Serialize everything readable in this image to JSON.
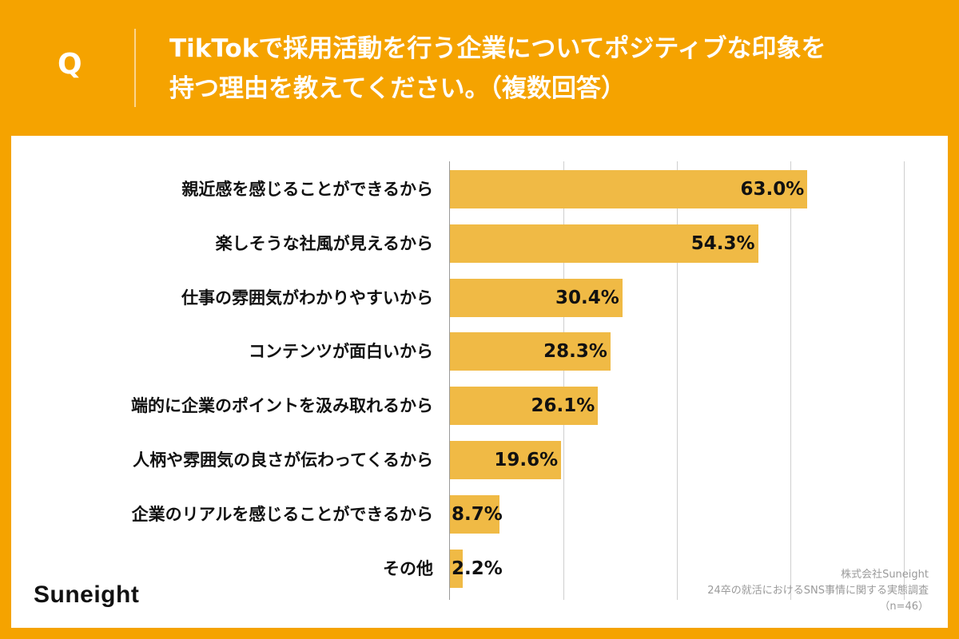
{
  "header": {
    "q_mark": "Q",
    "question_line1": "TikTokで採用活動を行う企業についてポジティブな印象を",
    "question_line2": "持つ理由を教えてください。（複数回答）"
  },
  "chart_data": {
    "type": "bar",
    "orientation": "horizontal",
    "categories": [
      "親近感を感じることができるから",
      "楽しそうな社風が見えるから",
      "仕事の雰囲気がわかりやすいから",
      "コンテンツが面白いから",
      "端的に企業のポイントを汲み取れるから",
      "人柄や雰囲気の良さが伝わってくるから",
      "企業のリアルを感じることができるから",
      "その他"
    ],
    "values": [
      63.0,
      54.3,
      30.4,
      28.3,
      26.1,
      19.6,
      8.7,
      2.2
    ],
    "value_labels": [
      "63.0%",
      "54.3%",
      "30.4%",
      "28.3%",
      "26.1%",
      "19.6%",
      "8.7%",
      "2.2%"
    ],
    "unit": "%",
    "xlim": [
      0,
      80
    ],
    "grid": true,
    "bar_color": "#F0BA45"
  },
  "footer": {
    "logo": "Suneight",
    "source_line1": "株式会社Suneight",
    "source_line2": "24卒の就活におけるSNS事情に関する実態調査",
    "source_line3": "（n=46）"
  },
  "colors": {
    "background": "#F5A300",
    "panel": "#FFFFFF",
    "bar": "#F0BA45"
  }
}
